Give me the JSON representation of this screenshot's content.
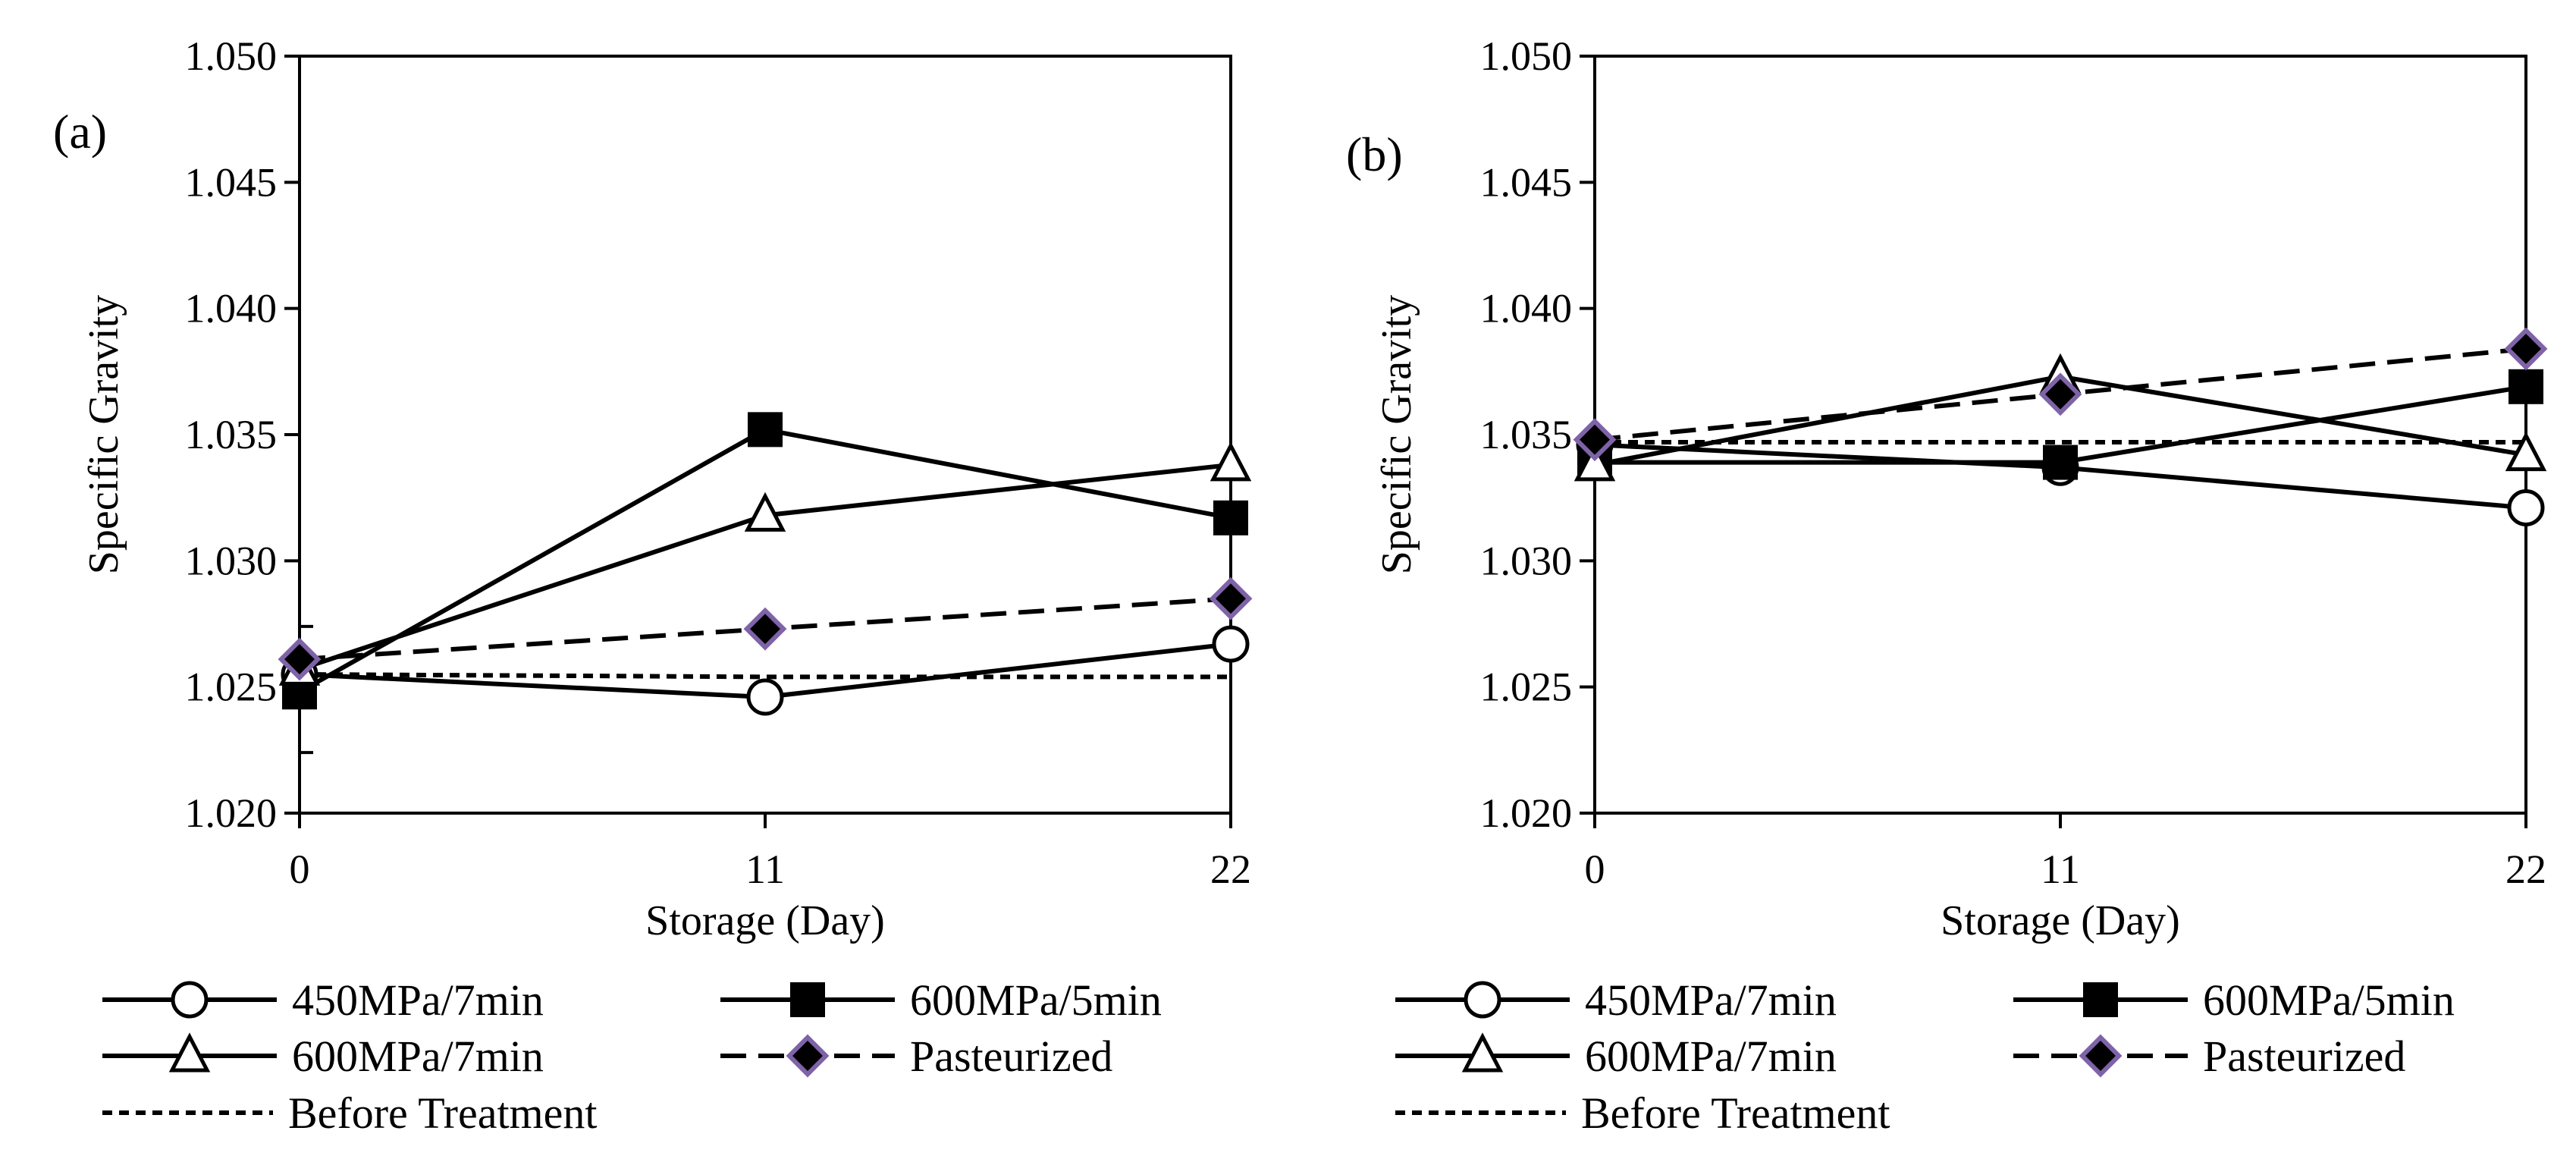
{
  "colors": {
    "line": "#000000",
    "pasteurized_fill": "#000000",
    "pasteurized_stroke": "#7f63a8",
    "background": "#ffffff"
  },
  "legend": [
    {
      "label": "450MPa/7min",
      "line": "solid",
      "marker": "circle-open"
    },
    {
      "label": "600MPa/5min",
      "line": "solid",
      "marker": "square-filled"
    },
    {
      "label": "600MPa/7min",
      "line": "solid",
      "marker": "triangle-open"
    },
    {
      "label": "Pasteurized",
      "line": "long-dash",
      "marker": "diamond-filled"
    },
    {
      "label": "Before Treatment",
      "line": "short-dash",
      "marker": "none"
    }
  ],
  "chart_data": [
    {
      "type": "line",
      "panel_label": "(a)",
      "title": "",
      "xlabel": "Storage (Day)",
      "ylabel": "Specific Gravity",
      "x": [
        0,
        11,
        22
      ],
      "x_ticks": [
        "0",
        "11",
        "22"
      ],
      "xlim": [
        0,
        22
      ],
      "ylim": [
        1.02,
        1.05
      ],
      "y_ticks": [
        "1.020",
        "1.025",
        "1.030",
        "1.035",
        "1.040",
        "1.045",
        "1.050"
      ],
      "grid": false,
      "legend_position": "bottom",
      "series": [
        {
          "name": "450MPa/7min",
          "values": [
            1.0255,
            1.0246,
            1.0267
          ]
        },
        {
          "name": "600MPa/5min",
          "values": [
            1.0248,
            1.0352,
            1.0317
          ]
        },
        {
          "name": "600MPa/7min",
          "values": [
            1.0257,
            1.0318,
            1.0338
          ]
        },
        {
          "name": "Pasteurized",
          "values": [
            1.0261,
            1.0273,
            1.0285
          ]
        },
        {
          "name": "Before Treatment",
          "values": [
            1.0255,
            1.0254,
            1.0254
          ]
        }
      ],
      "error_bar": {
        "x": 0,
        "low": 1.0224,
        "high": 1.0274
      }
    },
    {
      "type": "line",
      "panel_label": "(b)",
      "title": "",
      "xlabel": "Storage (Day)",
      "ylabel": "Specific Gravity",
      "x": [
        0,
        11,
        22
      ],
      "x_ticks": [
        "0",
        "11",
        "22"
      ],
      "xlim": [
        0,
        22
      ],
      "ylim": [
        1.02,
        1.05
      ],
      "y_ticks": [
        "1.020",
        "1.025",
        "1.030",
        "1.035",
        "1.040",
        "1.045",
        "1.050"
      ],
      "grid": false,
      "legend_position": "bottom",
      "series": [
        {
          "name": "450MPa/7min",
          "values": [
            1.0346,
            1.0337,
            1.0321
          ]
        },
        {
          "name": "600MPa/5min",
          "values": [
            1.0339,
            1.0339,
            1.0369
          ]
        },
        {
          "name": "600MPa/7min",
          "values": [
            1.0338,
            1.0373,
            1.0342
          ]
        },
        {
          "name": "Pasteurized",
          "values": [
            1.0348,
            1.0366,
            1.0384
          ]
        },
        {
          "name": "Before Treatment",
          "values": [
            1.0347,
            1.0347,
            1.0347
          ]
        }
      ]
    }
  ]
}
